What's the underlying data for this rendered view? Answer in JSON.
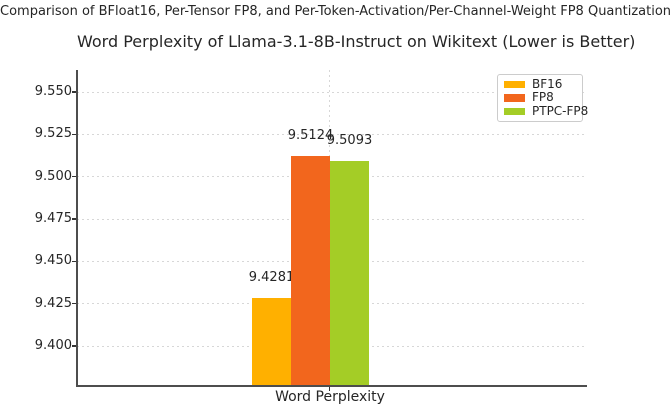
{
  "figure": {
    "suptitle": "Comparison of BFloat16, Per-Tensor FP8, and Per-Token-Activation/Per-Channel-Weight FP8 Quantization"
  },
  "chart_data": {
    "type": "bar",
    "title": "Word Perplexity of Llama-3.1-8B-Instruct on Wikitext (Lower is Better)",
    "xlabel": "Word Perplexity",
    "ylabel": "",
    "categories": [
      "Word Perplexity"
    ],
    "series": [
      {
        "name": "BF16",
        "values": [
          9.4281
        ],
        "bar_label": "9.4281",
        "color": "#FFB000"
      },
      {
        "name": "FP8",
        "values": [
          9.5124
        ],
        "bar_label": "9.5124",
        "color": "#F2661D"
      },
      {
        "name": "PTPC-FP8",
        "values": [
          9.5093
        ],
        "bar_label": "9.5093",
        "color": "#A4CD26"
      }
    ],
    "ylim": [
      9.377,
      9.563
    ],
    "yticks": [
      {
        "value": 9.4,
        "label": "9.400"
      },
      {
        "value": 9.425,
        "label": "9.425"
      },
      {
        "value": 9.45,
        "label": "9.450"
      },
      {
        "value": 9.475,
        "label": "9.475"
      },
      {
        "value": 9.5,
        "label": "9.500"
      },
      {
        "value": 9.525,
        "label": "9.525"
      },
      {
        "value": 9.55,
        "label": "9.550"
      }
    ],
    "grid": true,
    "legend": {
      "position": "upper right",
      "entries": [
        "BF16",
        "FP8",
        "PTPC-FP8"
      ]
    }
  }
}
